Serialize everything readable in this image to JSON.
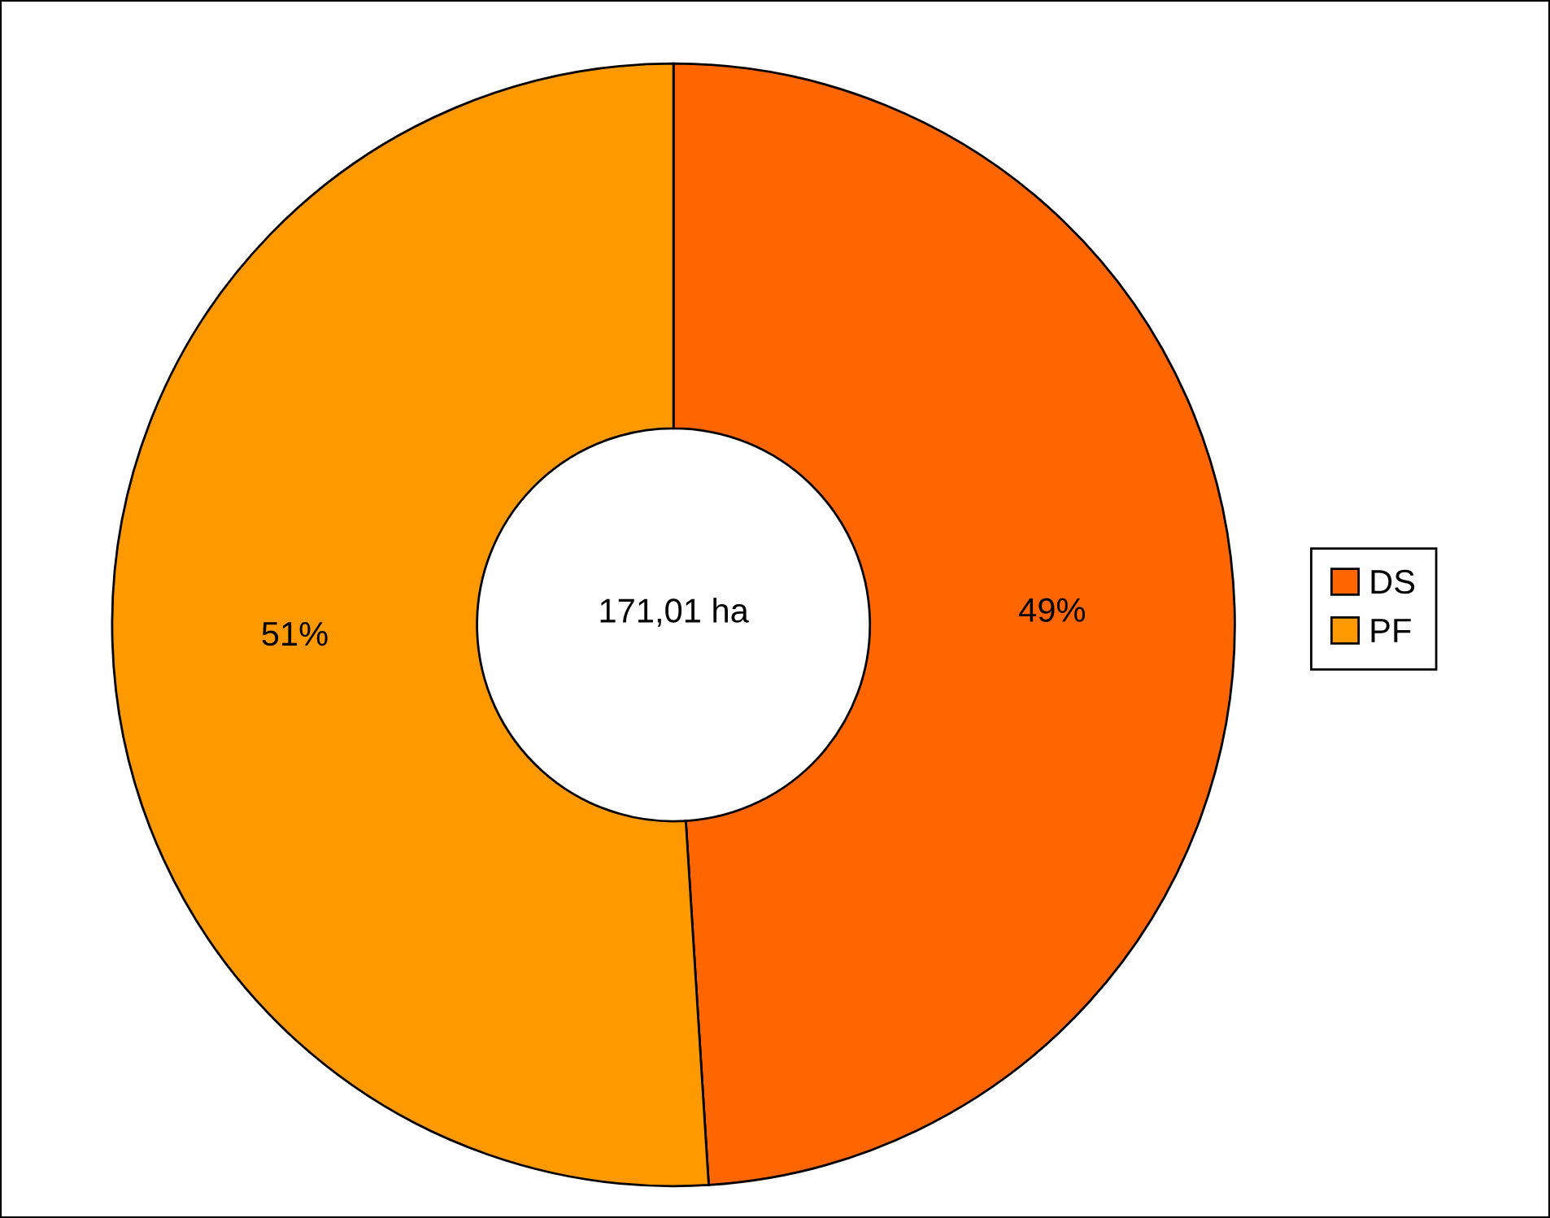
{
  "chart_data": {
    "type": "donut",
    "categories": [
      "DS",
      "PF"
    ],
    "values": [
      49,
      51
    ],
    "colors": [
      "#ff6600",
      "#ff9900"
    ],
    "value_labels": [
      "49%",
      "51%"
    ],
    "legend": "right",
    "annotations": [
      "171,01 ha"
    ]
  }
}
